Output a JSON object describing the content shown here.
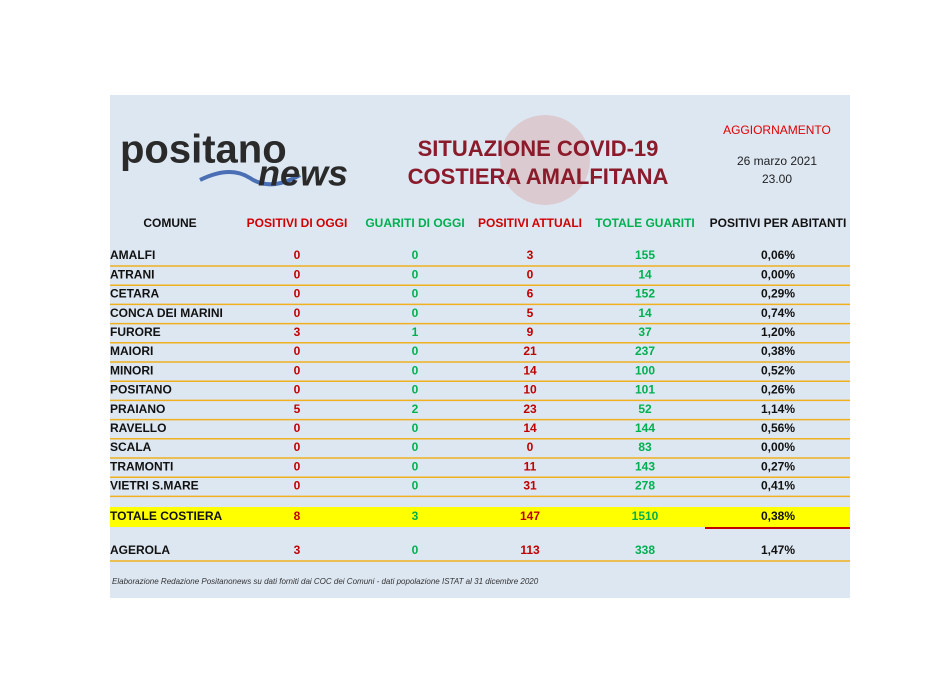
{
  "header": {
    "logo": {
      "top": "positano",
      "bottom": "news"
    },
    "title": [
      "SITUAZIONE COVID-19",
      "COSTIERA AMALFITANA"
    ],
    "update": {
      "label": "AGGIORNAMENTO",
      "date": "26 marzo 2021",
      "time": "23.00"
    }
  },
  "table": {
    "columns": [
      "COMUNE",
      "POSITIVI DI OGGI",
      "GUARITI DI OGGI",
      "POSITIVI ATTUALI",
      "TOTALE GUARITI",
      "POSITIVI  PER ABITANTI"
    ],
    "rows": [
      [
        "AMALFI",
        "0",
        "0",
        "3",
        "155",
        "0,06%"
      ],
      [
        "ATRANI",
        "0",
        "0",
        "0",
        "14",
        "0,00%"
      ],
      [
        "CETARA",
        "0",
        "0",
        "6",
        "152",
        "0,29%"
      ],
      [
        "CONCA DEI MARINI",
        "0",
        "0",
        "5",
        "14",
        "0,74%"
      ],
      [
        "FURORE",
        "3",
        "1",
        "9",
        "37",
        "1,20%"
      ],
      [
        "MAIORI",
        "0",
        "0",
        "21",
        "237",
        "0,38%"
      ],
      [
        "MINORI",
        "0",
        "0",
        "14",
        "100",
        "0,52%"
      ],
      [
        "POSITANO",
        "0",
        "0",
        "10",
        "101",
        "0,26%"
      ],
      [
        "PRAIANO",
        "5",
        "2",
        "23",
        "52",
        "1,14%"
      ],
      [
        "RAVELLO",
        "0",
        "0",
        "14",
        "144",
        "0,56%"
      ],
      [
        "SCALA",
        "0",
        "0",
        "0",
        "83",
        "0,00%"
      ],
      [
        "TRAMONTI",
        "0",
        "0",
        "11",
        "143",
        "0,27%"
      ],
      [
        "VIETRI S.MARE",
        "0",
        "0",
        "31",
        "278",
        "0,41%"
      ]
    ],
    "total": [
      "TOTALE COSTIERA",
      "8",
      "3",
      "147",
      "1510",
      "0,38%"
    ],
    "extra": [
      "AGEROLA",
      "3",
      "0",
      "113",
      "338",
      "1,47%"
    ]
  },
  "footnote": "Elaborazione Redazione Positanonews su dati forniti dai COC dei Comuni - dati popolazione ISTAT al 31 dicembre 2020"
}
